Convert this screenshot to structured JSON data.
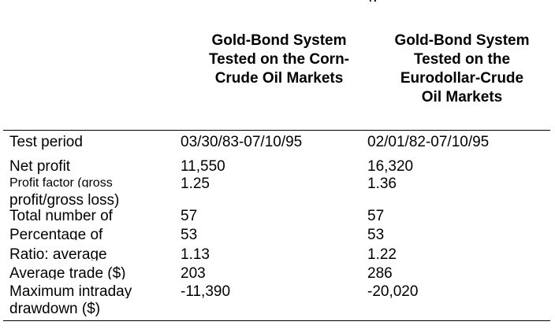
{
  "clipped_title": "g",
  "headers": {
    "col1": "Gold-Bond System\nTested on the Corn-\nCrude Oil Markets",
    "col2": "Gold-Bond System\nTested on the\nEurodollar-Crude\nOil Markets"
  },
  "rows": [
    {
      "label": "Test period",
      "col1": "03/30/83-07/10/95",
      "col2": "02/01/82-07/10/95"
    },
    {
      "label": "Net profit",
      "col1": "11,550",
      "col2": "16,320"
    },
    {
      "label": "Profit factor (gross",
      "label2": "profit/gross loss)",
      "col1": "1.25",
      "col2": "1.36"
    },
    {
      "label": "Total number of",
      "col1": "57",
      "col2": "57"
    },
    {
      "label": "Percentage of",
      "col1": "53",
      "col2": "53"
    },
    {
      "label": "Ratio: average",
      "col1": "1.13",
      "col2": "1.22"
    },
    {
      "label": "Average trade ($)",
      "col1": "203",
      "col2": "286"
    },
    {
      "label": "Maximum intraday",
      "label2": "drawdown ($)",
      "col1": "-11,390",
      "col2": "-20,020"
    }
  ]
}
